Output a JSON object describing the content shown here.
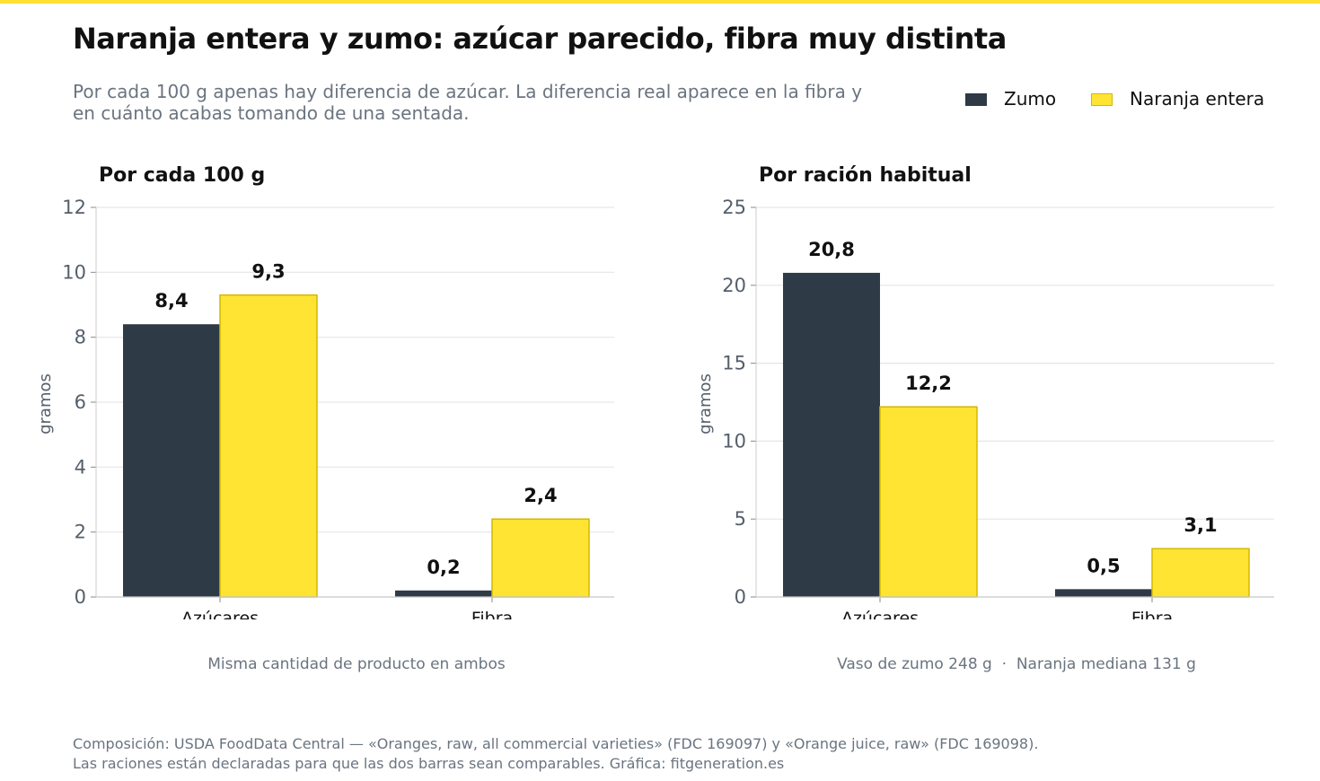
{
  "title": "Naranja entera y zumo: azúcar parecido, fibra muy distinta",
  "subtitle": "Por cada 100 g apenas hay diferencia de azúcar. La diferencia real aparece en la fibra y en cuánto acabas tomando de una sentada.",
  "colors": {
    "accent_bar": "#ffe033",
    "zumo": "#2e3a46",
    "naranja": "#ffe433",
    "naranja_border": "#d4b800",
    "grid": "#e6e6e6",
    "axis_text": "#555f6b"
  },
  "legend": [
    {
      "label": "Zumo",
      "color": "#2e3a46"
    },
    {
      "label": "Naranja entera",
      "color": "#ffe433"
    }
  ],
  "chart_data": [
    {
      "type": "bar",
      "title": "Por cada 100 g",
      "categories": [
        "Azúcares",
        "Fibra"
      ],
      "series": [
        {
          "name": "Zumo",
          "values": [
            8.4,
            0.2
          ],
          "labels": [
            "8,4",
            "0,2"
          ]
        },
        {
          "name": "Naranja entera",
          "values": [
            9.3,
            2.4
          ],
          "labels": [
            "9,3",
            "2,4"
          ]
        }
      ],
      "ylabel": "gramos",
      "ylim": [
        0,
        12
      ],
      "yticks": [
        0,
        2,
        4,
        6,
        8,
        10,
        12
      ],
      "ytick_labels": [
        "0",
        "2",
        "4",
        "6",
        "8",
        "10",
        "12"
      ],
      "caption": "Misma cantidad de producto en ambos",
      "grid": true
    },
    {
      "type": "bar",
      "title": "Por ración habitual",
      "categories": [
        "Azúcares",
        "Fibra"
      ],
      "series": [
        {
          "name": "Zumo",
          "values": [
            20.8,
            0.5
          ],
          "labels": [
            "20,8",
            "0,5"
          ]
        },
        {
          "name": "Naranja entera",
          "values": [
            12.2,
            3.1
          ],
          "labels": [
            "12,2",
            "3,1"
          ]
        }
      ],
      "ylabel": "gramos",
      "ylim": [
        0,
        25
      ],
      "yticks": [
        0,
        5,
        10,
        15,
        20,
        25
      ],
      "ytick_labels": [
        "0",
        "5",
        "10",
        "15",
        "20",
        "25"
      ],
      "caption": "Vaso de zumo 248 g  ·  Naranja mediana 131 g",
      "grid": true
    }
  ],
  "source": [
    "Composición: USDA FoodData Central — «Oranges, raw, all commercial varieties» (FDC 169097) y «Orange juice, raw» (FDC 169098).",
    "Las raciones están declaradas para que las dos barras sean comparables. Gráfica: fitgeneration.es"
  ]
}
